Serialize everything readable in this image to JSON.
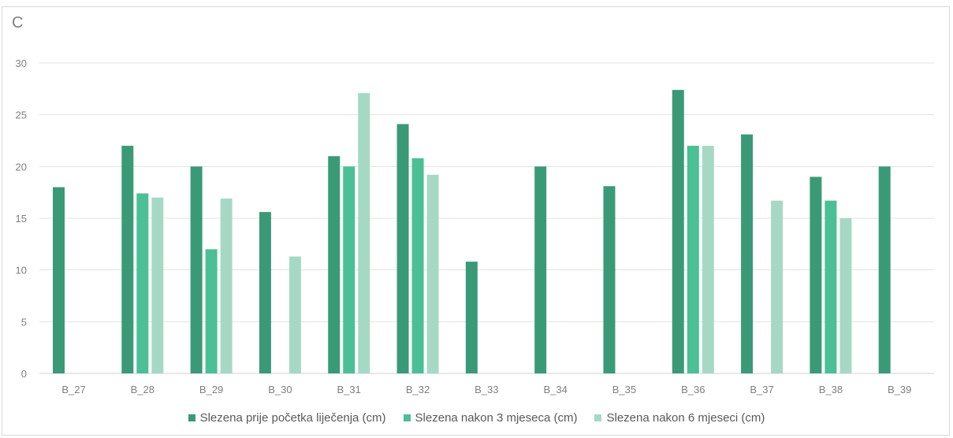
{
  "panel_label": "C",
  "chart_data": {
    "type": "bar",
    "categories": [
      "B_27",
      "B_28",
      "B_29",
      "B_30",
      "B_31",
      "B_32",
      "B_33",
      "B_34",
      "B_35",
      "B_36",
      "B_37",
      "B_38",
      "B_39"
    ],
    "series": [
      {
        "name": "Slezena prije početka liječenja (cm)",
        "color": "#3a9a78",
        "values": [
          18,
          22,
          20,
          15.6,
          21,
          24.1,
          10.8,
          20,
          18.1,
          27.4,
          23.1,
          19,
          20
        ]
      },
      {
        "name": "Slezena nakon 3 mjeseca (cm)",
        "color": "#4bbf96",
        "values": [
          null,
          17.4,
          12,
          null,
          20,
          20.8,
          null,
          null,
          null,
          22,
          null,
          16.7,
          null
        ]
      },
      {
        "name": "Slezena nakon 6 mjeseci (cm)",
        "color": "#a6d9c5",
        "values": [
          null,
          17,
          16.9,
          11.3,
          27.1,
          19.2,
          null,
          null,
          null,
          22,
          16.7,
          15,
          null
        ]
      }
    ],
    "ylim": [
      0,
      30
    ],
    "yticks": [
      0,
      5,
      10,
      15,
      20,
      25,
      30
    ],
    "grid": true,
    "legend_position": "bottom"
  }
}
